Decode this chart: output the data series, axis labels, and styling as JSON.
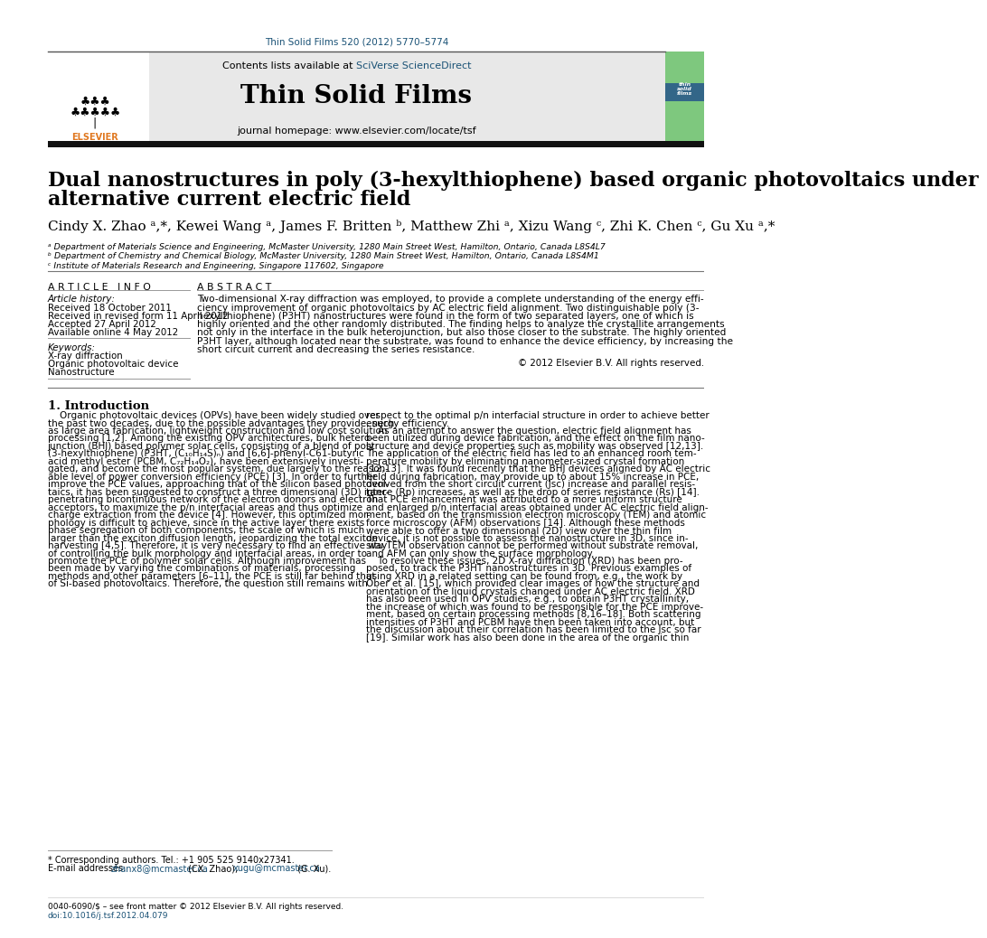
{
  "page_width": 9.92,
  "page_height": 13.23,
  "bg_color": "#ffffff",
  "header_citation": "Thin Solid Films 520 (2012) 5770–5774",
  "header_citation_color": "#1a5276",
  "journal_name": "Thin Solid Films",
  "journal_url": "journal homepage: www.elsevier.com/locate/tsf",
  "contents_text": "Contents lists available at ",
  "sciverse_text": "SciVerse ScienceDirect",
  "sciverse_color": "#1a5276",
  "header_bg": "#e8e8e8",
  "thick_bar_color": "#1a1a1a",
  "title_line1": "Dual nanostructures in poly (3-hexylthiophene) based organic photovoltaics under",
  "title_line2": "alternative current electric field",
  "authors_text": "Cindy X. Zhao ᵃ,*, Kewei Wang ᵃ, James F. Britten ᵇ, Matthew Zhi ᵃ, Xizu Wang ᶜ, Zhi K. Chen ᶜ, Gu Xu ᵃ,*",
  "affil_a": "ᵃ Department of Materials Science and Engineering, McMaster University, 1280 Main Street West, Hamilton, Ontario, Canada L8S4L7",
  "affil_b": "ᵇ Department of Chemistry and Chemical Biology, McMaster University, 1280 Main Street West, Hamilton, Ontario, Canada L8S4M1",
  "affil_c": "ᶜ Institute of Materials Research and Engineering, Singapore 117602, Singapore",
  "article_info_header": "A R T I C L E   I N F O",
  "abstract_header": "A B S T R A C T",
  "article_history_label": "Article history:",
  "received1": "Received 18 October 2011",
  "received2": "Received in revised form 11 April 2012",
  "accepted": "Accepted 27 April 2012",
  "available": "Available online 4 May 2012",
  "keywords_label": "Keywords:",
  "keyword1": "X-ray diffraction",
  "keyword2": "Organic photovoltaic device",
  "keyword3": "Nanostructure",
  "abstract_text": "Two-dimensional X-ray diffraction was employed, to provide a complete understanding of the energy effi-\nciency improvement of organic photovoltaics by AC electric field alignment. Two distinguishable poly (3-\nhexylthiophene) (P3HT) nanostructures were found in the form of two separated layers, one of which is\nhighly oriented and the other randomly distributed. The finding helps to analyze the crystallite arrangements\nnot only in the interface in the bulk heterojunction, but also those closer to the substrate. The highly oriented\nP3HT layer, although located near the substrate, was found to enhance the device efficiency, by increasing the\nshort circuit current and decreasing the series resistance.",
  "copyright_text": "© 2012 Elsevier B.V. All rights reserved.",
  "intro_header": "1. Introduction",
  "intro_col1": "    Organic photovoltaic devices (OPVs) have been widely studied over\nthe past two decades, due to the possible advantages they provide, such\nas large area fabrication, lightweight construction and low cost solution\nprocessing [1,2]. Among the existing OPV architectures, bulk hetero-\njunction (BHJ) based polymer solar cells, consisting of a blend of poly\n(3-hexylthiophene) (P3HT, (C₁₀H₁₄S)ₙ) and [6,6]-phenyl-C61-butyric\nacid methyl ester (PCBM, C₇₂H₁₄O₂), have been extensively investi-\ngated, and become the most popular system, due largely to the reason-\nable level of power conversion efficiency (PCE) [3]. In order to further\nimprove the PCE values, approaching that of the silicon based photovol-\ntaics, it has been suggested to construct a three dimensional (3D) inter-\npenetrating bicontinuous network of the electron donors and electron\nacceptors, to maximize the p/n interfacial areas and thus optimize\ncharge extraction from the device [4]. However, this optimized mor-\nphology is difficult to achieve, since in the active layer there exists\nphase segregation of both components, the scale of which is much\nlarger than the exciton diffusion length, jeopardizing the total exciton\nharvesting [4,5]. Therefore, it is very necessary to find an effective way\nof controlling the bulk morphology and interfacial areas, in order to\npromote the PCE of polymer solar cells. Although improvement has\nbeen made by varying the combinations of materials, processing\nmethods and other parameters [6–11], the PCE is still far behind that\nof Si-based photovoltaics. Therefore, the question still remains with",
  "intro_col2": "respect to the optimal p/n interfacial structure in order to achieve better\nenergy efficiency.\n    As an attempt to answer the question, electric field alignment has\nbeen utilized during device fabrication, and the effect on the film nano-\nstructure and device properties such as mobility was observed [12,13].\nThe application of the electric field has led to an enhanced room tem-\nperature mobility by eliminating nanometer-sized crystal formation\n[12,13]. It was found recently that the BHJ devices aligned by AC electric\nfield during fabrication, may provide up to about 15% increase in PCE,\nderived from the short circuit current (Jsc) increase and parallel resis-\ntance (Rp) increases, as well as the drop of series resistance (Rs) [14].\nThat PCE enhancement was attributed to a more uniform structure\nand enlarged p/n interfacial areas obtained under AC electric field align-\nment, based on the transmission electron microscopy (TEM) and atomic\nforce microscopy (AFM) observations [14]. Although these methods\nwere able to offer a two dimensional (2D) view over the thin film\ndevice, it is not possible to assess the nanostructure in 3D, since in-\nsitu TEM observation cannot be performed without substrate removal,\nand AFM can only show the surface morphology.\n    To resolve these issues, 2D X-ray diffraction (XRD) has been pro-\nposed, to track the P3HT nanostructures in 3D. Previous examples of\nusing XRD in a related setting can be found from, e.g., the work by\nOber et al. [15], which provided clear images of how the structure and\norientation of the liquid crystals changed under AC electric field. XRD\nhas also been used in OPV studies, e.g., to obtain P3HT crystallinity,\nthe increase of which was found to be responsible for the PCE improve-\nment, based on certain processing methods [8,16–18]. Both scattering\nintensities of P3HT and PCBM have then been taken into account, but\nthe discussion about their correlation has been limited to the Jsc so far\n[19]. Similar work has also been done in the area of the organic thin",
  "footnote1": "* Corresponding authors. Tel.: +1 905 525 9140x27341.",
  "footnote2": "E-mail addresses: zhanx8@mcmaster.ca (CX. Zhao), xugu@mcmaster.ca (G. Xu).",
  "footnote2_pre": "E-mail addresses: ",
  "footnote2_email1": "zhanx8@mcmaster.ca",
  "footnote2_mid": " (CX. Zhao), ",
  "footnote2_email2": "xugu@mcmaster.ca",
  "footnote2_post": " (G. Xu).",
  "bottom_bar1": "0040-6090/$ – see front matter © 2012 Elsevier B.V. All rights reserved.",
  "bottom_bar2": "doi:10.1016/j.tsf.2012.04.079",
  "link_color": "#1a5276",
  "cover_green": "#7ec87e",
  "cover_blue": "#4488aa",
  "cover_purple": "#bb88bb"
}
